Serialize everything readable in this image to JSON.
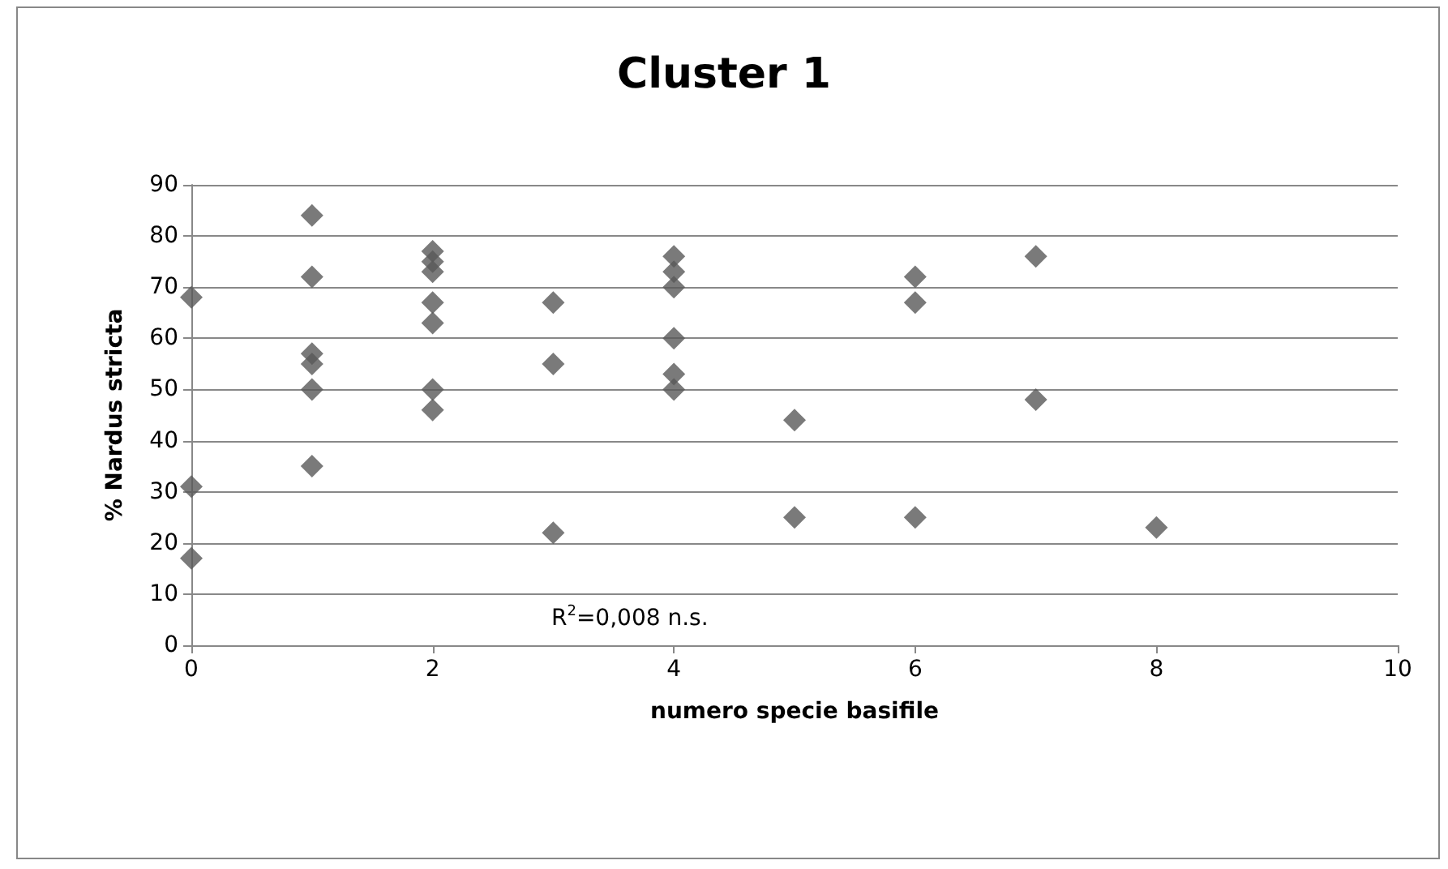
{
  "chart_data": {
    "type": "scatter",
    "title": "Cluster 1",
    "xlabel": "numero specie basifile",
    "ylabel": "% Nardus stricta",
    "x": [
      0,
      0,
      0,
      1,
      1,
      1,
      1,
      1,
      1,
      2,
      2,
      2,
      2,
      2,
      2,
      2,
      3,
      3,
      3,
      4,
      4,
      4,
      4,
      4,
      4,
      5,
      5,
      6,
      6,
      6,
      7,
      7,
      8
    ],
    "values": [
      68,
      31,
      17,
      84,
      72,
      57,
      55,
      50,
      35,
      77,
      75,
      73,
      67,
      63,
      50,
      46,
      67,
      55,
      22,
      76,
      73,
      70,
      60,
      53,
      50,
      44,
      25,
      72,
      67,
      25,
      76,
      48,
      23
    ],
    "color": "#595959",
    "marker": "diamond",
    "xlim": [
      0,
      10
    ],
    "xticks": [
      0,
      2,
      4,
      6,
      8,
      10
    ],
    "ylim": [
      0,
      90
    ],
    "yticks": [
      0,
      10,
      20,
      30,
      40,
      50,
      60,
      70,
      80,
      90
    ],
    "grid": "y",
    "annotations": [
      "R$^{2}$=0,008 n.s."
    ]
  }
}
